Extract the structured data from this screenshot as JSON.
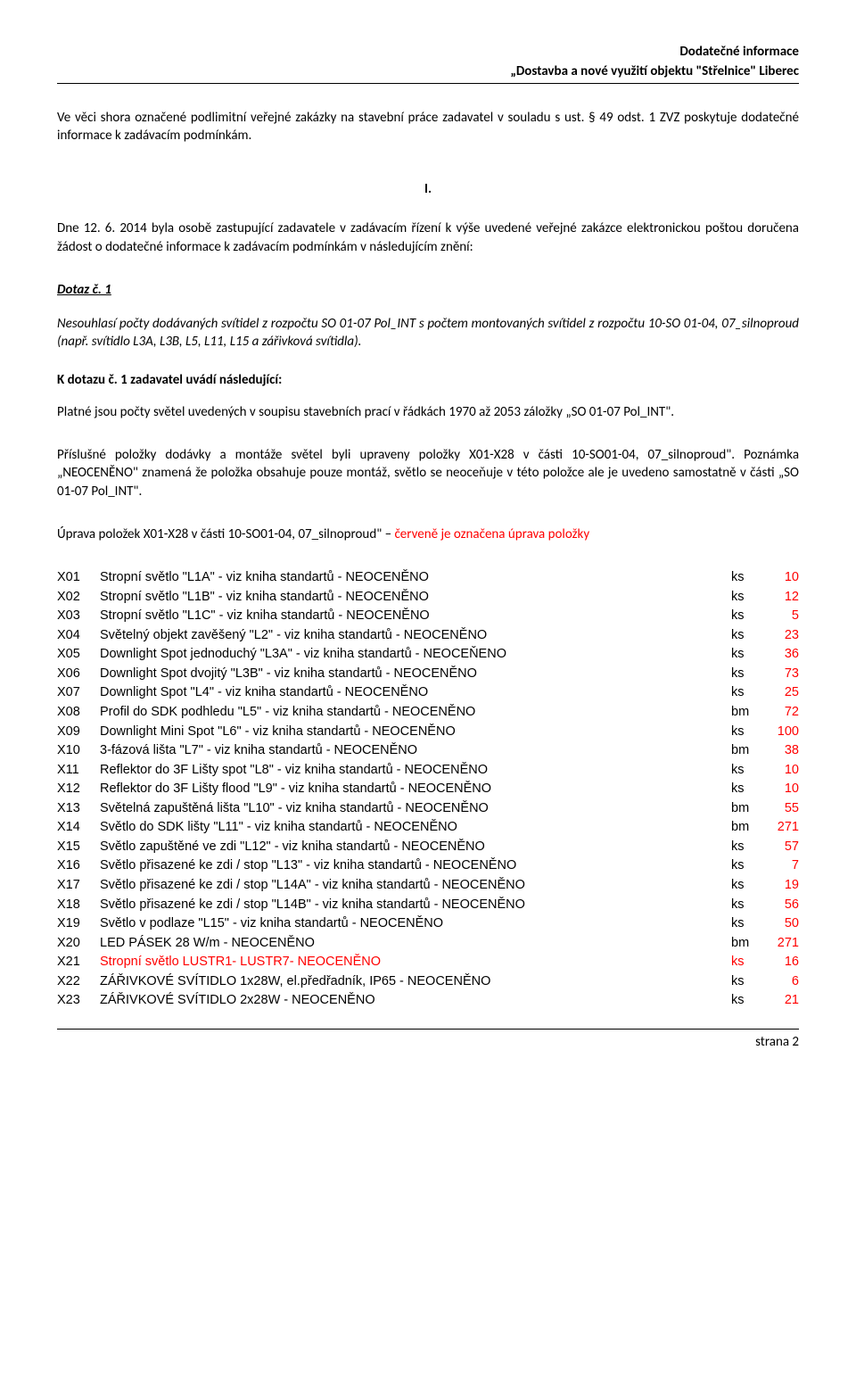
{
  "header": {
    "line1": "Dodatečné informace",
    "line2": "„Dostavba a nové využití objektu \"Střelnice\" Liberec"
  },
  "intro": "Ve věci shora označené podlimitní veřejné zakázky na stavební práce zadavatel v souladu s ust. § 49 odst. 1 ZVZ poskytuje dodatečné informace k zadávacím podmínkám.",
  "section_number": "I.",
  "para1": "Dne 12. 6. 2014 byla osobě zastupující zadavatele v zadávacím řízení k výše uvedené veřejné zakázce elektronickou poštou doručena žádost o dodatečné informace k zadávacím podmínkám v následujícím znění:",
  "query": {
    "label": "Dotaz č. 1",
    "body": "Nesouhlasí počty dodávaných svítidel z rozpočtu SO 01-07 Pol_INT s počtem montovaných svítidel z rozpočtu 10-SO 01-04, 07_silnoproud (např. svítidlo L3A, L3B, L5, L11, L15 a zářivková svítidla)."
  },
  "answer": {
    "label": "K dotazu č. 1 zadavatel uvádí následující:",
    "p1": "Platné jsou počty světel uvedených v soupisu stavebních prací v řádkách 1970 až 2053 záložky „SO 01-07 Pol_INT\".",
    "p2": "Příslušné položky dodávky a montáže světel byli upraveny položky X01-X28 v části 10-SO01-04, 07_silnoproud\". Poznámka „NEOCENĚNO\" znamená že položka obsahuje pouze montáž, světlo se neoceňuje v této položce ale je uvedeno samostatně v části „SO 01-07 Pol_INT\".",
    "p3_prefix": "Úprava položek X01-X28 v části 10-SO01-04, 07_silnoproud\" – ",
    "p3_red": "červeně je označena úprava položky"
  },
  "colors": {
    "text": "#000000",
    "highlight": "#ff0000",
    "background": "#ffffff",
    "rule": "#000000"
  },
  "table": {
    "rows": [
      {
        "code": "X01",
        "desc": "Stropní světlo \"L1A\" - viz kniha standartů - NEOCENĚNO",
        "unit": "ks",
        "qty": "10",
        "desc_red": false
      },
      {
        "code": "X02",
        "desc": "Stropní světlo \"L1B\" - viz kniha standartů - NEOCENĚNO",
        "unit": "ks",
        "qty": "12",
        "desc_red": false
      },
      {
        "code": "X03",
        "desc": "Stropní světlo \"L1C\" - viz kniha standartů - NEOCENĚNO",
        "unit": "ks",
        "qty": "5",
        "desc_red": false
      },
      {
        "code": "X04",
        "desc": "Světelný objekt zavěšený \"L2\" - viz kniha standartů - NEOCENĚNO",
        "unit": "ks",
        "qty": "23",
        "desc_red": false
      },
      {
        "code": "X05",
        "desc": "Downlight Spot jednoduchý \"L3A\" - viz kniha standartů - NEOCEŇENO",
        "unit": "ks",
        "qty": "36",
        "desc_red": false
      },
      {
        "code": "X06",
        "desc": "Downlight Spot dvojitý \"L3B\" - viz kniha standartů - NEOCENĚNO",
        "unit": "ks",
        "qty": "73",
        "desc_red": false
      },
      {
        "code": "X07",
        "desc": "Downlight Spot  \"L4\" - viz kniha standartů - NEOCENĚNO",
        "unit": "ks",
        "qty": "25",
        "desc_red": false
      },
      {
        "code": "X08",
        "desc": "Profil do SDK podhledu \"L5\" - viz kniha standartů - NEOCENĚNO",
        "unit": "bm",
        "qty": "72",
        "desc_red": false
      },
      {
        "code": "X09",
        "desc": "Downlight Mini Spot  \"L6\" - viz kniha standartů - NEOCENĚNO",
        "unit": "ks",
        "qty": "100",
        "desc_red": false
      },
      {
        "code": "X10",
        "desc": "3-fázová lišta  \"L7\" - viz kniha standartů - NEOCENĚNO",
        "unit": "bm",
        "qty": "38",
        "desc_red": false
      },
      {
        "code": "X11",
        "desc": "Reflektor do 3F Lišty spot \"L8\" - viz kniha standartů - NEOCENĚNO",
        "unit": "ks",
        "qty": "10",
        "desc_red": false
      },
      {
        "code": "X12",
        "desc": "Reflektor do 3F Lišty flood \"L9\" - viz kniha standartů - NEOCENĚNO",
        "unit": "ks",
        "qty": "10",
        "desc_red": false
      },
      {
        "code": "X13",
        "desc": "Světelná zapuštěná lišta \"L10\" - viz kniha standartů - NEOCENĚNO",
        "unit": "bm",
        "qty": "55",
        "desc_red": false
      },
      {
        "code": "X14",
        "desc": "Světlo do SDK lišty \"L11\" - viz kniha standartů - NEOCENĚNO",
        "unit": "bm",
        "qty": "271",
        "desc_red": false
      },
      {
        "code": "X15",
        "desc": "Světlo zapuštěné ve zdi \"L12\" - viz kniha standartů - NEOCENĚNO",
        "unit": "ks",
        "qty": "57",
        "desc_red": false
      },
      {
        "code": "X16",
        "desc": "Světlo přisazené ke zdi / stop \"L13\" - viz kniha standartů - NEOCENĚNO",
        "unit": "ks",
        "qty": "7",
        "desc_red": false
      },
      {
        "code": "X17",
        "desc": "Světlo přisazené ke zdi / stop \"L14A\" - viz kniha standartů - NEOCENĚNO",
        "unit": "ks",
        "qty": "19",
        "desc_red": false
      },
      {
        "code": "X18",
        "desc": "Světlo přisazené ke zdi / stop \"L14B\" - viz kniha standartů - NEOCENĚNO",
        "unit": "ks",
        "qty": "56",
        "desc_red": false
      },
      {
        "code": "X19",
        "desc": "Světlo v podlaze  \"L15\" - viz kniha standartů - NEOCENĚNO",
        "unit": "ks",
        "qty": "50",
        "desc_red": false
      },
      {
        "code": "X20",
        "desc": "LED PÁSEK 28 W/m - NEOCENĚNO",
        "unit": "bm",
        "qty": "271",
        "desc_red": false
      },
      {
        "code": "X21",
        "desc": "Stropní světlo LUSTR1- LUSTR7- NEOCENĚNO",
        "unit": "ks",
        "qty": "16",
        "desc_red": true
      },
      {
        "code": "X22",
        "desc": "ZÁŘIVKOVÉ SVÍTIDLO 1x28W, el.předřadník, IP65 - NEOCENĚNO",
        "unit": "ks",
        "qty": "6",
        "desc_red": false
      },
      {
        "code": "X23",
        "desc": "ZÁŘIVKOVÉ SVÍTIDLO 2x28W - NEOCENĚNO",
        "unit": "ks",
        "qty": "21",
        "desc_red": false
      }
    ]
  },
  "footer": "strana 2"
}
